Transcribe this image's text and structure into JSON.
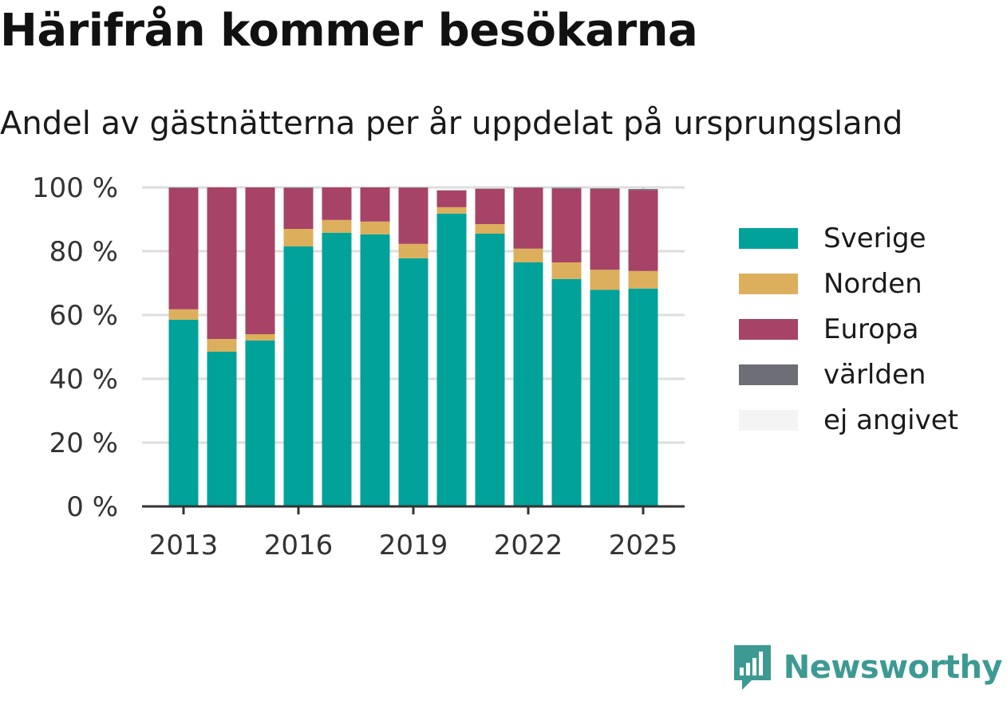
{
  "header": {
    "title": "Härifrån kommer besökarna",
    "subtitle": "Andel av gästnätterna per år uppdelat på ursprungsland"
  },
  "brand": {
    "name": "Newsworthy",
    "icon": "newsworthy-logo-icon",
    "color": "#3d9a93"
  },
  "chart_data": {
    "type": "bar",
    "stacked": true,
    "categories": [
      "2013",
      "2014",
      "2015",
      "2016",
      "2017",
      "2018",
      "2019",
      "2020",
      "2021",
      "2022",
      "2023",
      "2024",
      "2025"
    ],
    "x_tick_labels": [
      "2013",
      "2016",
      "2019",
      "2022",
      "2025"
    ],
    "y_tick_labels": [
      "0 %",
      "20 %",
      "40 %",
      "60 %",
      "80 %",
      "100 %"
    ],
    "ylim": [
      0,
      100
    ],
    "grid": true,
    "legend_position": "right",
    "series": [
      {
        "name": "Sverige",
        "color": "#00a29a",
        "values": [
          58.5,
          48.5,
          52.0,
          81.5,
          85.8,
          85.3,
          77.8,
          91.8,
          85.5,
          76.5,
          71.3,
          67.9,
          68.3
        ]
      },
      {
        "name": "Norden",
        "color": "#dcaf5c",
        "values": [
          3.3,
          4.0,
          2.0,
          5.5,
          4.0,
          4.0,
          4.5,
          2.0,
          3.0,
          4.3,
          5.2,
          6.3,
          5.5
        ]
      },
      {
        "name": "Europa",
        "color": "#a64367",
        "values": [
          38.0,
          47.5,
          46.0,
          12.8,
          10.2,
          10.7,
          17.6,
          5.2,
          11.0,
          19.1,
          23.1,
          25.3,
          25.4
        ]
      },
      {
        "name": "världen",
        "color": "#6e6e76",
        "values": [
          0.2,
          0.0,
          0.0,
          0.2,
          0.0,
          0.0,
          0.1,
          0.1,
          0.1,
          0.1,
          0.3,
          0.2,
          0.3
        ]
      },
      {
        "name": "ej angivet",
        "color": "#f4f4f4",
        "values": [
          0,
          0,
          0,
          0,
          0,
          0,
          0,
          0,
          0,
          0,
          0,
          0,
          0
        ]
      }
    ]
  }
}
